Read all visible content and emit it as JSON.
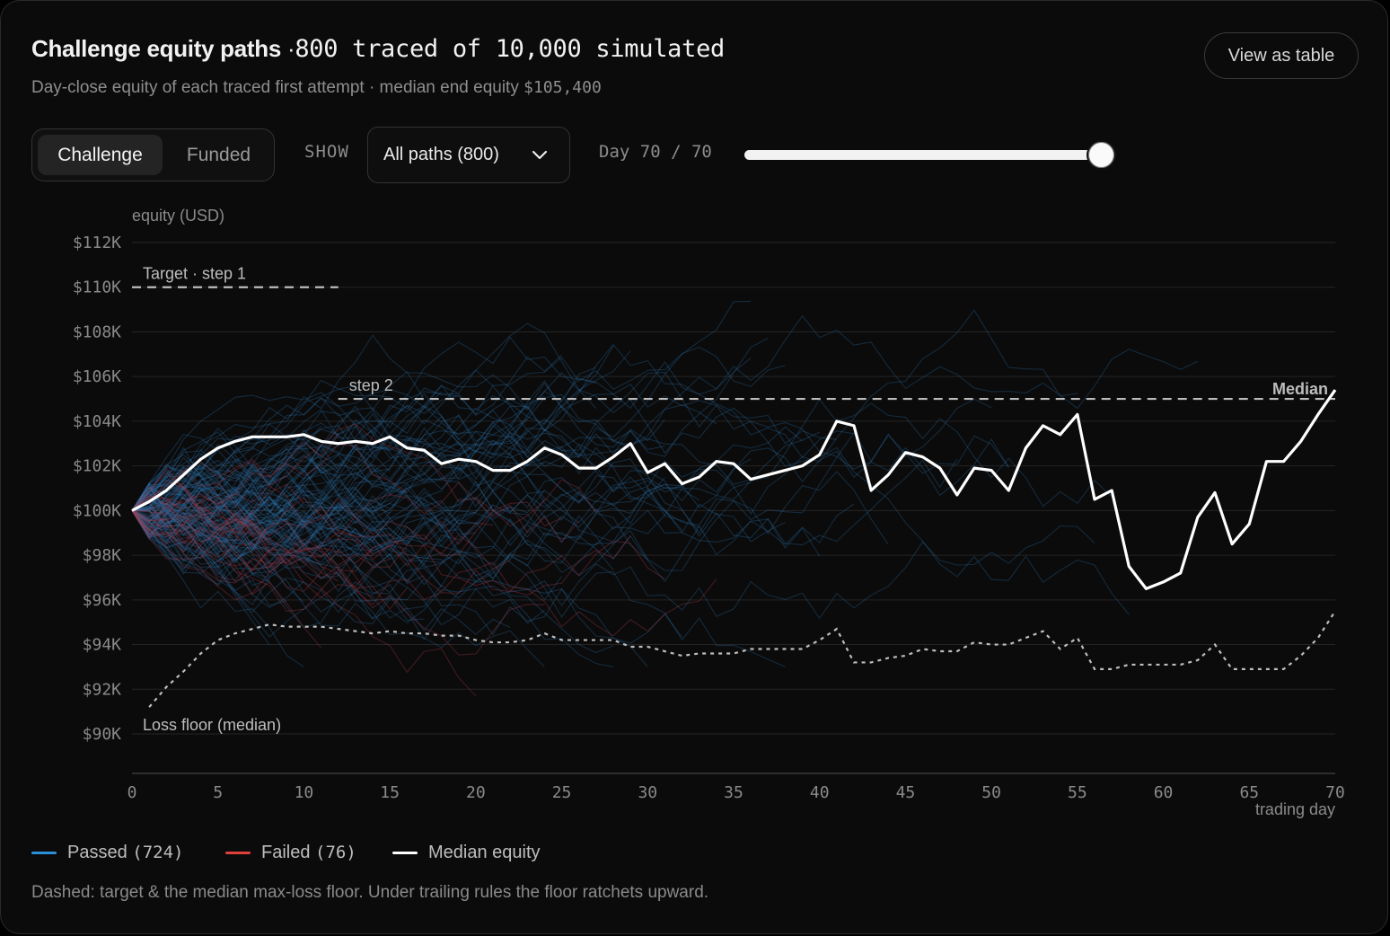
{
  "header": {
    "title": "Challenge equity paths",
    "title_sep": "·",
    "title_count": "800 traced of 10,000 simulated",
    "subtitle_text": "Day-close equity of each traced first attempt · median end equity",
    "subtitle_value": "$105,400",
    "view_table_label": "View as table"
  },
  "controls": {
    "tabs": [
      {
        "label": "Challenge",
        "active": true
      },
      {
        "label": "Funded",
        "active": false
      }
    ],
    "show_label": "SHOW",
    "show_select_value": "All paths (800)",
    "day_label": "Day 70 / 70",
    "day_value": 70,
    "day_max": 70
  },
  "legend": {
    "passed": {
      "label": "Passed",
      "count": "(724)",
      "color": "#2b8fd9"
    },
    "failed": {
      "label": "Failed",
      "count": "(76)",
      "color": "#e0413a"
    },
    "median": {
      "label": "Median equity",
      "color": "#ffffff"
    }
  },
  "footnote": "Dashed: target & the median max-loss floor. Under trailing rules the floor ratchets upward.",
  "chart_data": {
    "type": "line",
    "ylabel": "equity (USD)",
    "xlabel": "trading day",
    "xlim": [
      0,
      70
    ],
    "ylim": [
      90000,
      112000
    ],
    "x_ticks": [
      0,
      5,
      10,
      15,
      20,
      25,
      30,
      35,
      40,
      45,
      50,
      55,
      60,
      65,
      70
    ],
    "y_ticks": [
      90000,
      92000,
      94000,
      96000,
      98000,
      100000,
      102000,
      104000,
      106000,
      108000,
      110000,
      112000
    ],
    "y_tick_labels": [
      "$90K",
      "$92K",
      "$94K",
      "$96K",
      "$98K",
      "$100K",
      "$102K",
      "$104K",
      "$106K",
      "$108K",
      "$110K",
      "$112K"
    ],
    "grid": true,
    "annotations": {
      "target_step1_label": "Target · step 1",
      "step2_label": "step 2",
      "loss_floor_label": "Loss floor (median)",
      "median_label": "Median"
    },
    "target_step1": {
      "value": 110000,
      "x_range": [
        0,
        12
      ]
    },
    "target_step2": {
      "value": 105000,
      "x_range": [
        12,
        70
      ]
    },
    "series": [
      {
        "name": "Median equity",
        "x": [
          0,
          1,
          2,
          3,
          4,
          5,
          6,
          7,
          8,
          9,
          10,
          11,
          12,
          13,
          14,
          15,
          16,
          17,
          18,
          19,
          20,
          21,
          22,
          23,
          24,
          25,
          26,
          27,
          28,
          29,
          30,
          31,
          32,
          33,
          34,
          35,
          36,
          37,
          38,
          39,
          40,
          41,
          42,
          43,
          44,
          45,
          46,
          47,
          48,
          49,
          50,
          51,
          52,
          53,
          54,
          55,
          56,
          57,
          58,
          59,
          60,
          61,
          62,
          63,
          64,
          65,
          66,
          67,
          68,
          69,
          70
        ],
        "values": [
          100000,
          100400,
          100900,
          101600,
          102300,
          102800,
          103100,
          103300,
          103300,
          103300,
          103400,
          103100,
          103000,
          103100,
          103000,
          103300,
          102800,
          102700,
          102100,
          102300,
          102200,
          101800,
          101800,
          102200,
          102800,
          102500,
          101900,
          101900,
          102400,
          103000,
          101700,
          102100,
          101200,
          101500,
          102200,
          102100,
          101400,
          101600,
          101800,
          102000,
          102500,
          104000,
          103800,
          100900,
          101600,
          102600,
          102400,
          101900,
          100700,
          101900,
          101800,
          100900,
          102800,
          103800,
          103400,
          104300,
          100500,
          100900,
          97500,
          96500,
          96800,
          97200,
          99700,
          100800,
          98500,
          99400,
          102200,
          102200,
          103100,
          104300,
          105400
        ]
      },
      {
        "name": "Loss floor (median)",
        "x": [
          1,
          2,
          3,
          4,
          5,
          6,
          7,
          8,
          9,
          10,
          11,
          12,
          13,
          14,
          15,
          16,
          17,
          18,
          19,
          20,
          21,
          22,
          23,
          24,
          25,
          26,
          27,
          28,
          29,
          30,
          31,
          32,
          33,
          34,
          35,
          36,
          37,
          38,
          39,
          40,
          41,
          42,
          43,
          44,
          45,
          46,
          47,
          48,
          49,
          50,
          51,
          52,
          53,
          54,
          55,
          56,
          57,
          58,
          59,
          60,
          61,
          62,
          63,
          64,
          65,
          66,
          67,
          68,
          69,
          70
        ],
        "values": [
          91200,
          92100,
          92800,
          93600,
          94200,
          94500,
          94700,
          94900,
          94800,
          94800,
          94800,
          94700,
          94600,
          94500,
          94600,
          94500,
          94500,
          94400,
          94400,
          94200,
          94100,
          94100,
          94200,
          94500,
          94200,
          94200,
          94200,
          94200,
          93900,
          93900,
          93700,
          93500,
          93600,
          93600,
          93600,
          93800,
          93800,
          93800,
          93800,
          94200,
          94700,
          93200,
          93200,
          93400,
          93500,
          93800,
          93700,
          93700,
          94100,
          94000,
          94000,
          94300,
          94600,
          93800,
          94300,
          92900,
          92900,
          93100,
          93100,
          93100,
          93100,
          93300,
          94000,
          92900,
          92900,
          92900,
          92900,
          93500,
          94300,
          95500
        ]
      }
    ],
    "traced_paths": {
      "passed": 724,
      "failed": 76,
      "total_simulated": 10000
    }
  }
}
